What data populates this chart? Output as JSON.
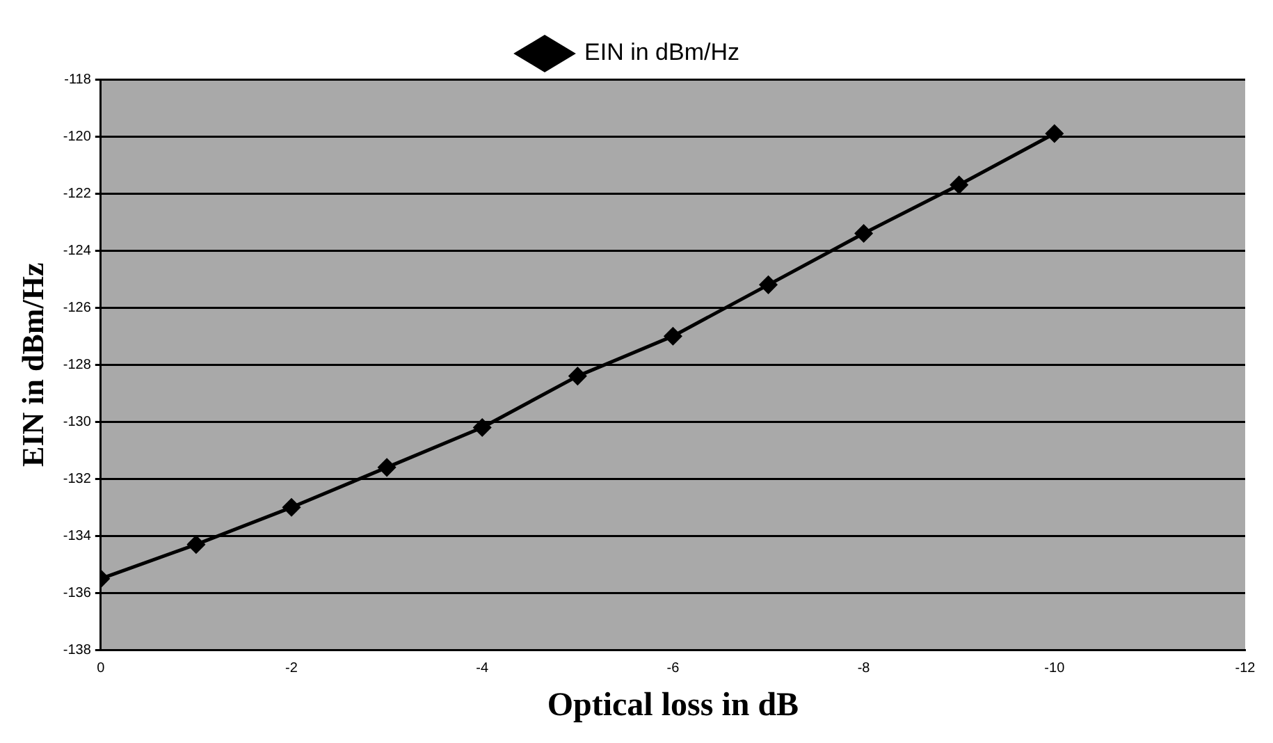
{
  "chart_data": {
    "type": "line",
    "xlabel": "Optical loss in dB",
    "ylabel": "EIN in dBm/Hz",
    "x": [
      0,
      -1,
      -2,
      -3,
      -4,
      -5,
      -6,
      -7,
      -8,
      -9,
      -10
    ],
    "series": [
      {
        "name": "EIN in dBm/Hz",
        "color": "#000000",
        "values": [
          -135.5,
          -134.3,
          -133.0,
          -131.6,
          -130.2,
          -128.4,
          -127.0,
          -125.2,
          -123.4,
          -121.7,
          -119.9
        ]
      }
    ],
    "xlim": [
      0,
      -12
    ],
    "xticks": [
      0,
      -2,
      -4,
      -6,
      -8,
      -10,
      -12
    ],
    "ylim": [
      -138,
      -118
    ],
    "yticks": [
      -138,
      -136,
      -134,
      -132,
      -130,
      -128,
      -126,
      -124,
      -122,
      -120,
      -118
    ],
    "grid": "y",
    "legend": "top",
    "marker": "diamond",
    "line_style": "solid"
  }
}
